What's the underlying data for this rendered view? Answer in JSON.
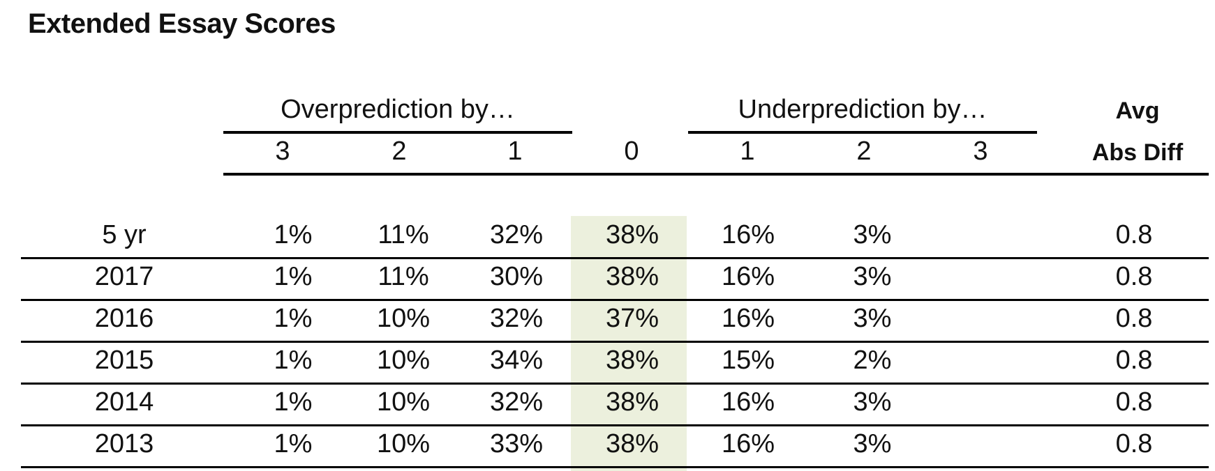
{
  "chart_data": {
    "type": "table",
    "title": "Extended Essay Scores",
    "column_groups": [
      {
        "label": "Overprediction by…",
        "columns": [
          "3",
          "2",
          "1"
        ]
      },
      {
        "label": "",
        "columns": [
          "0"
        ]
      },
      {
        "label": "Underprediction by…",
        "columns": [
          "1",
          "2",
          "3"
        ]
      }
    ],
    "avg_header": [
      "Avg",
      "Abs Diff"
    ],
    "highlighted_column": "0",
    "rows": [
      {
        "label": "5 yr",
        "values": [
          "1%",
          "11%",
          "32%",
          "38%",
          "16%",
          "3%",
          ""
        ],
        "avg": "0.8"
      },
      {
        "label": "2017",
        "values": [
          "1%",
          "11%",
          "30%",
          "38%",
          "16%",
          "3%",
          ""
        ],
        "avg": "0.8"
      },
      {
        "label": "2016",
        "values": [
          "1%",
          "10%",
          "32%",
          "37%",
          "16%",
          "3%",
          ""
        ],
        "avg": "0.8"
      },
      {
        "label": "2015",
        "values": [
          "1%",
          "10%",
          "34%",
          "38%",
          "15%",
          "2%",
          ""
        ],
        "avg": "0.8"
      },
      {
        "label": "2014",
        "values": [
          "1%",
          "10%",
          "32%",
          "38%",
          "16%",
          "3%",
          ""
        ],
        "avg": "0.8"
      },
      {
        "label": "2013",
        "values": [
          "1%",
          "10%",
          "33%",
          "38%",
          "16%",
          "3%",
          ""
        ],
        "avg": "0.8"
      }
    ],
    "highlight_color": "#ecf0dd"
  }
}
